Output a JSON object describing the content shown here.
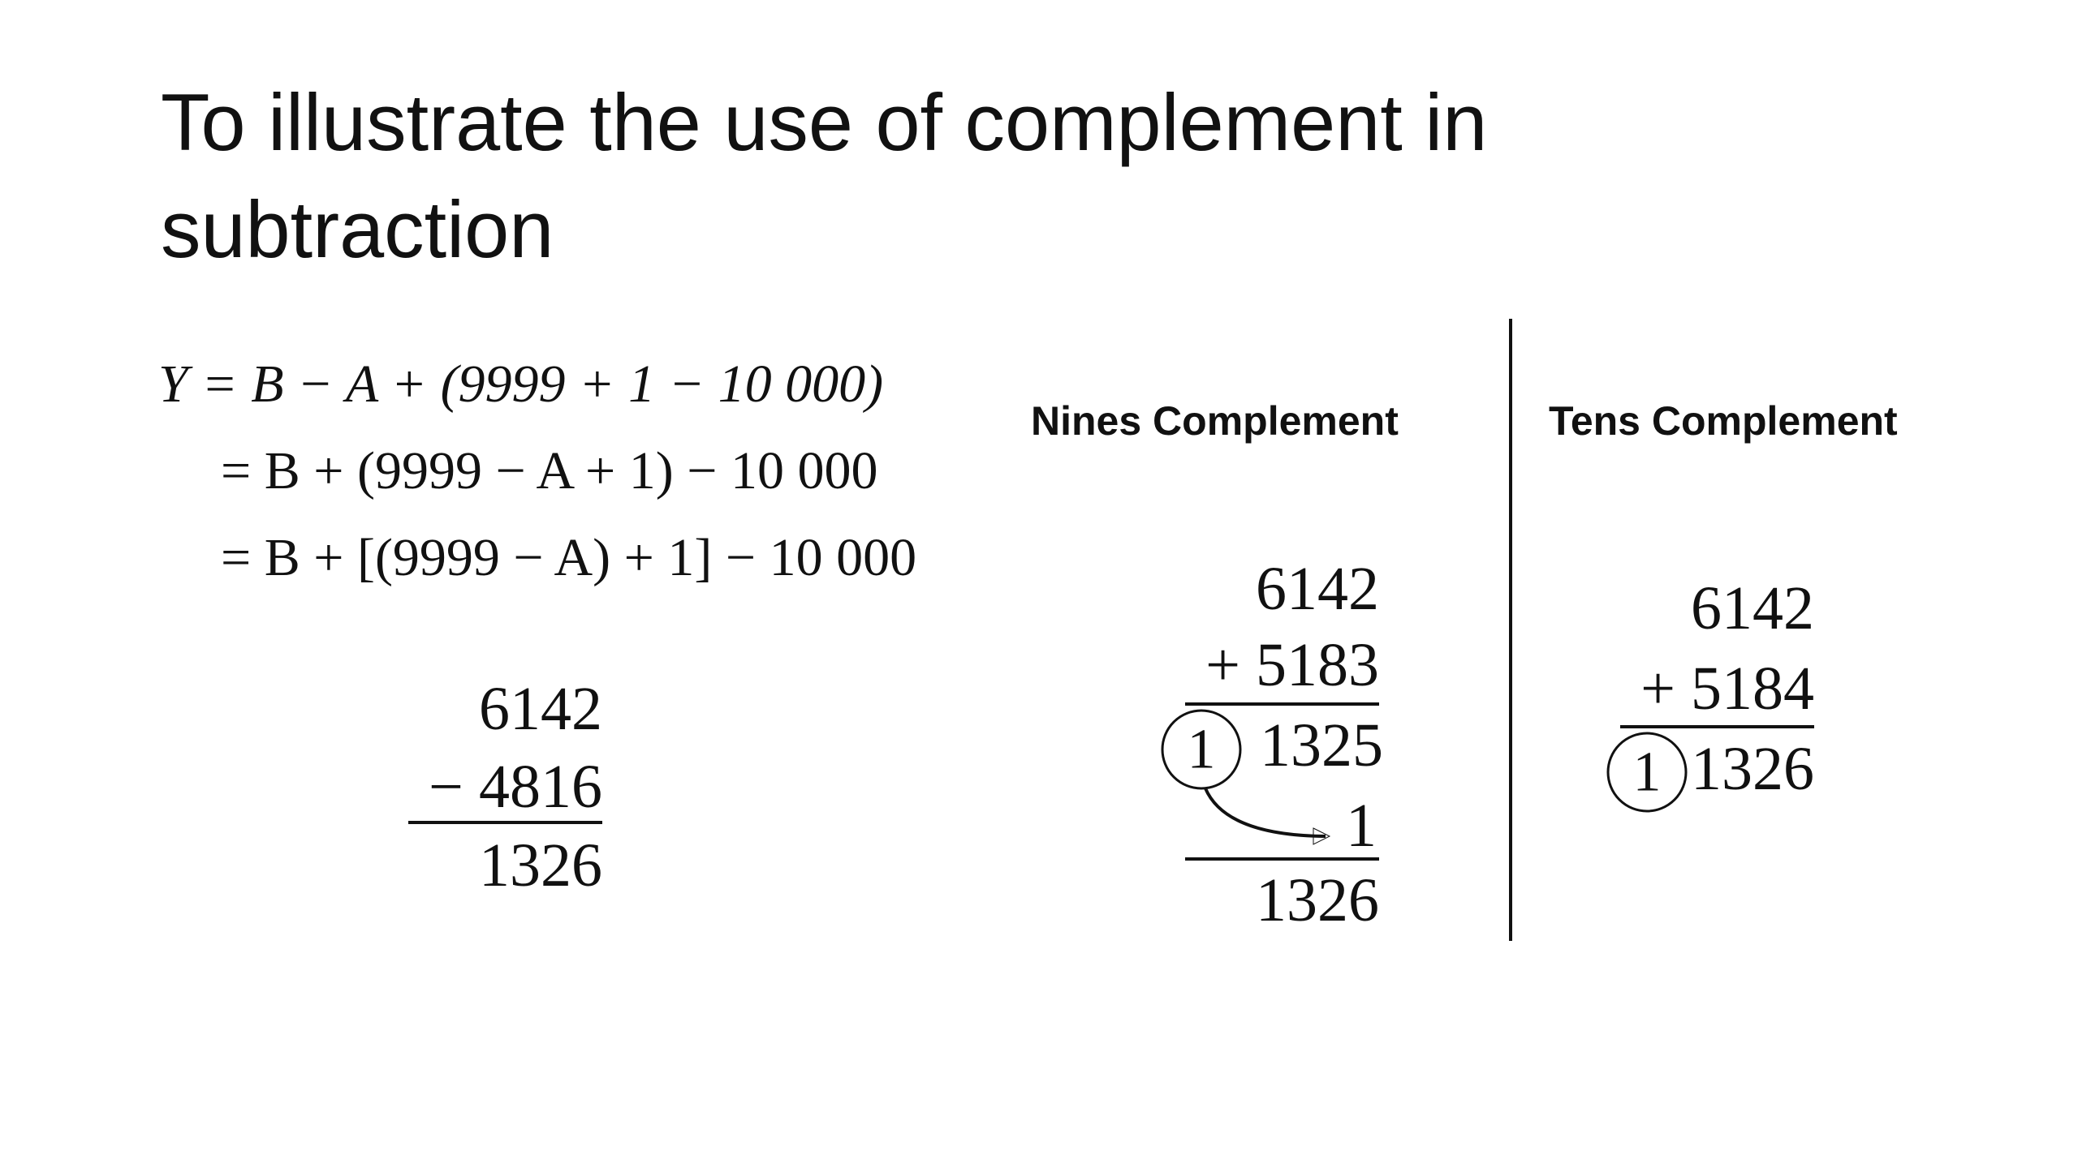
{
  "title": "To illustrate the use of complement in subtraction",
  "equations": [
    "Y = B − A + (9999 + 1 − 10 000)",
    "= B + (9999 − A + 1) − 10 000",
    "= B + [(9999 − A) + 1] − 10 000"
  ],
  "direct": {
    "minuend": "6142",
    "subtrahend": "− 4816",
    "result": "1326"
  },
  "nines": {
    "heading": "Nines Complement",
    "minuend": "6142",
    "addend": "+ 5183",
    "carry": "1",
    "sum": "1325",
    "end_around": "1",
    "result": "1326"
  },
  "tens": {
    "heading": "Tens Complement",
    "minuend": "6142",
    "addend": "+ 5184",
    "carry": "1",
    "result": "1326"
  }
}
